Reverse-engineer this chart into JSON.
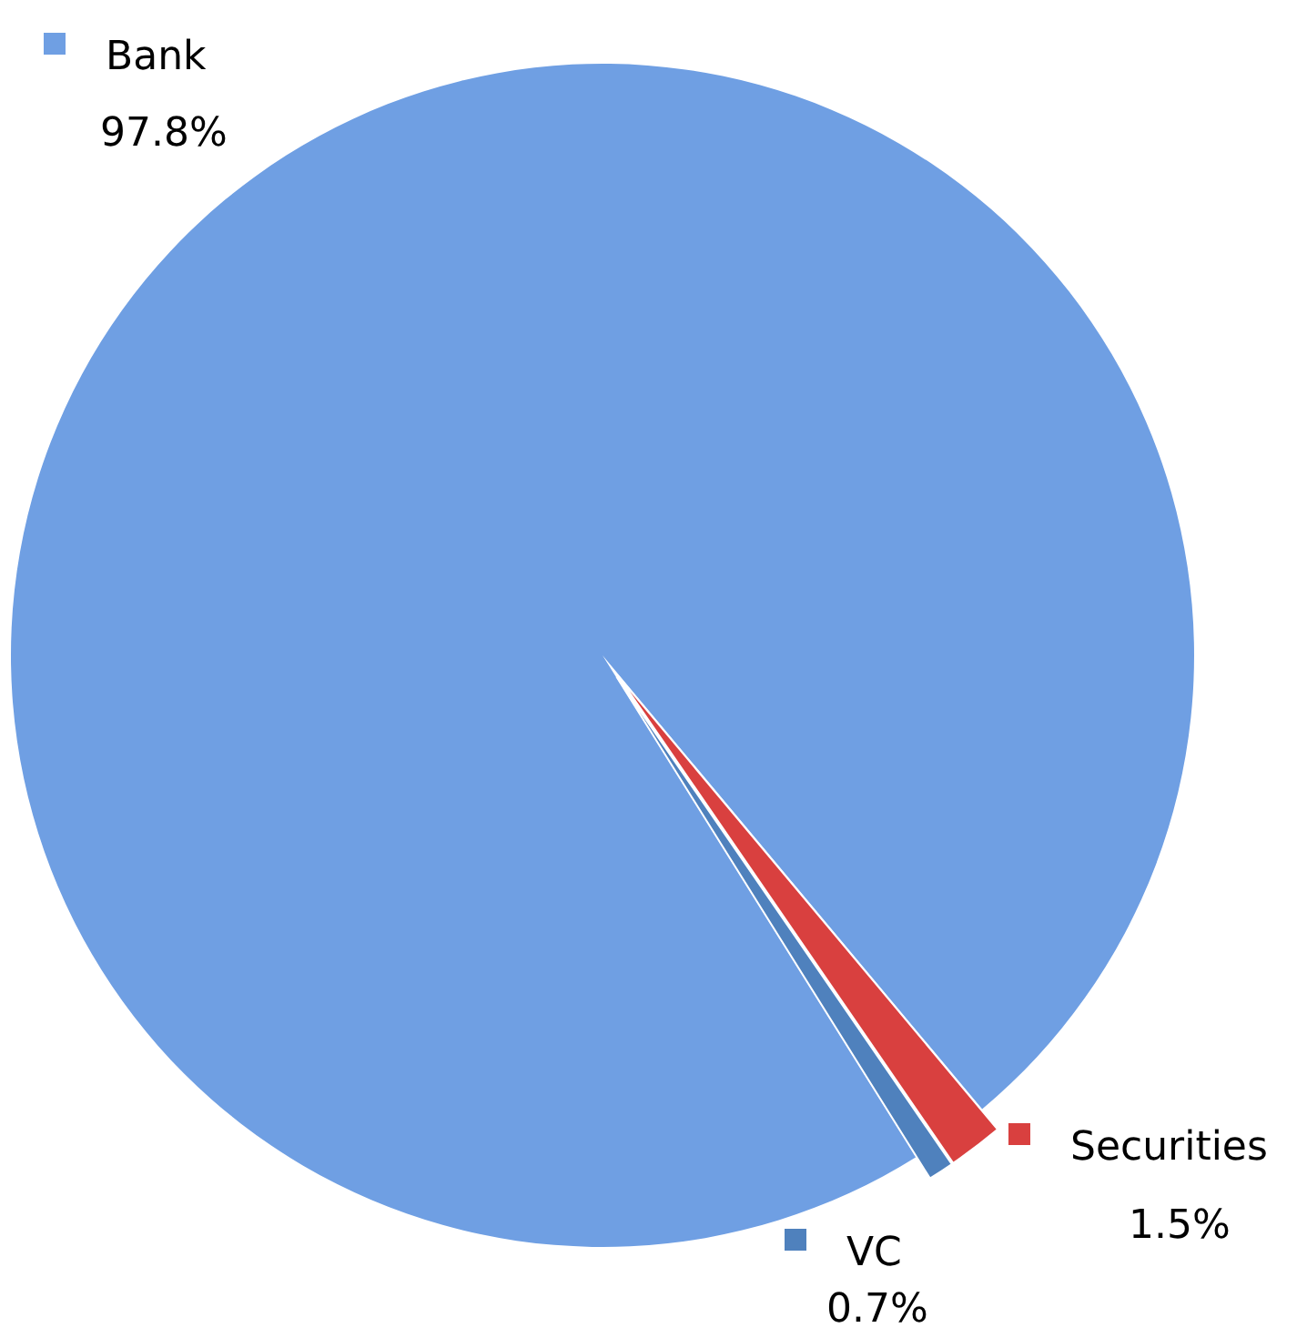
{
  "chart_data": {
    "type": "pie",
    "categories": [
      "Bank",
      "Securities",
      "VC"
    ],
    "values": [
      97.8,
      1.5,
      0.7
    ],
    "colors": [
      "#6f9fe3",
      "#d9403f",
      "#4f81bd"
    ],
    "value_labels": [
      "97.8%",
      "1.5%",
      "0.7%"
    ],
    "legend": "top left"
  }
}
